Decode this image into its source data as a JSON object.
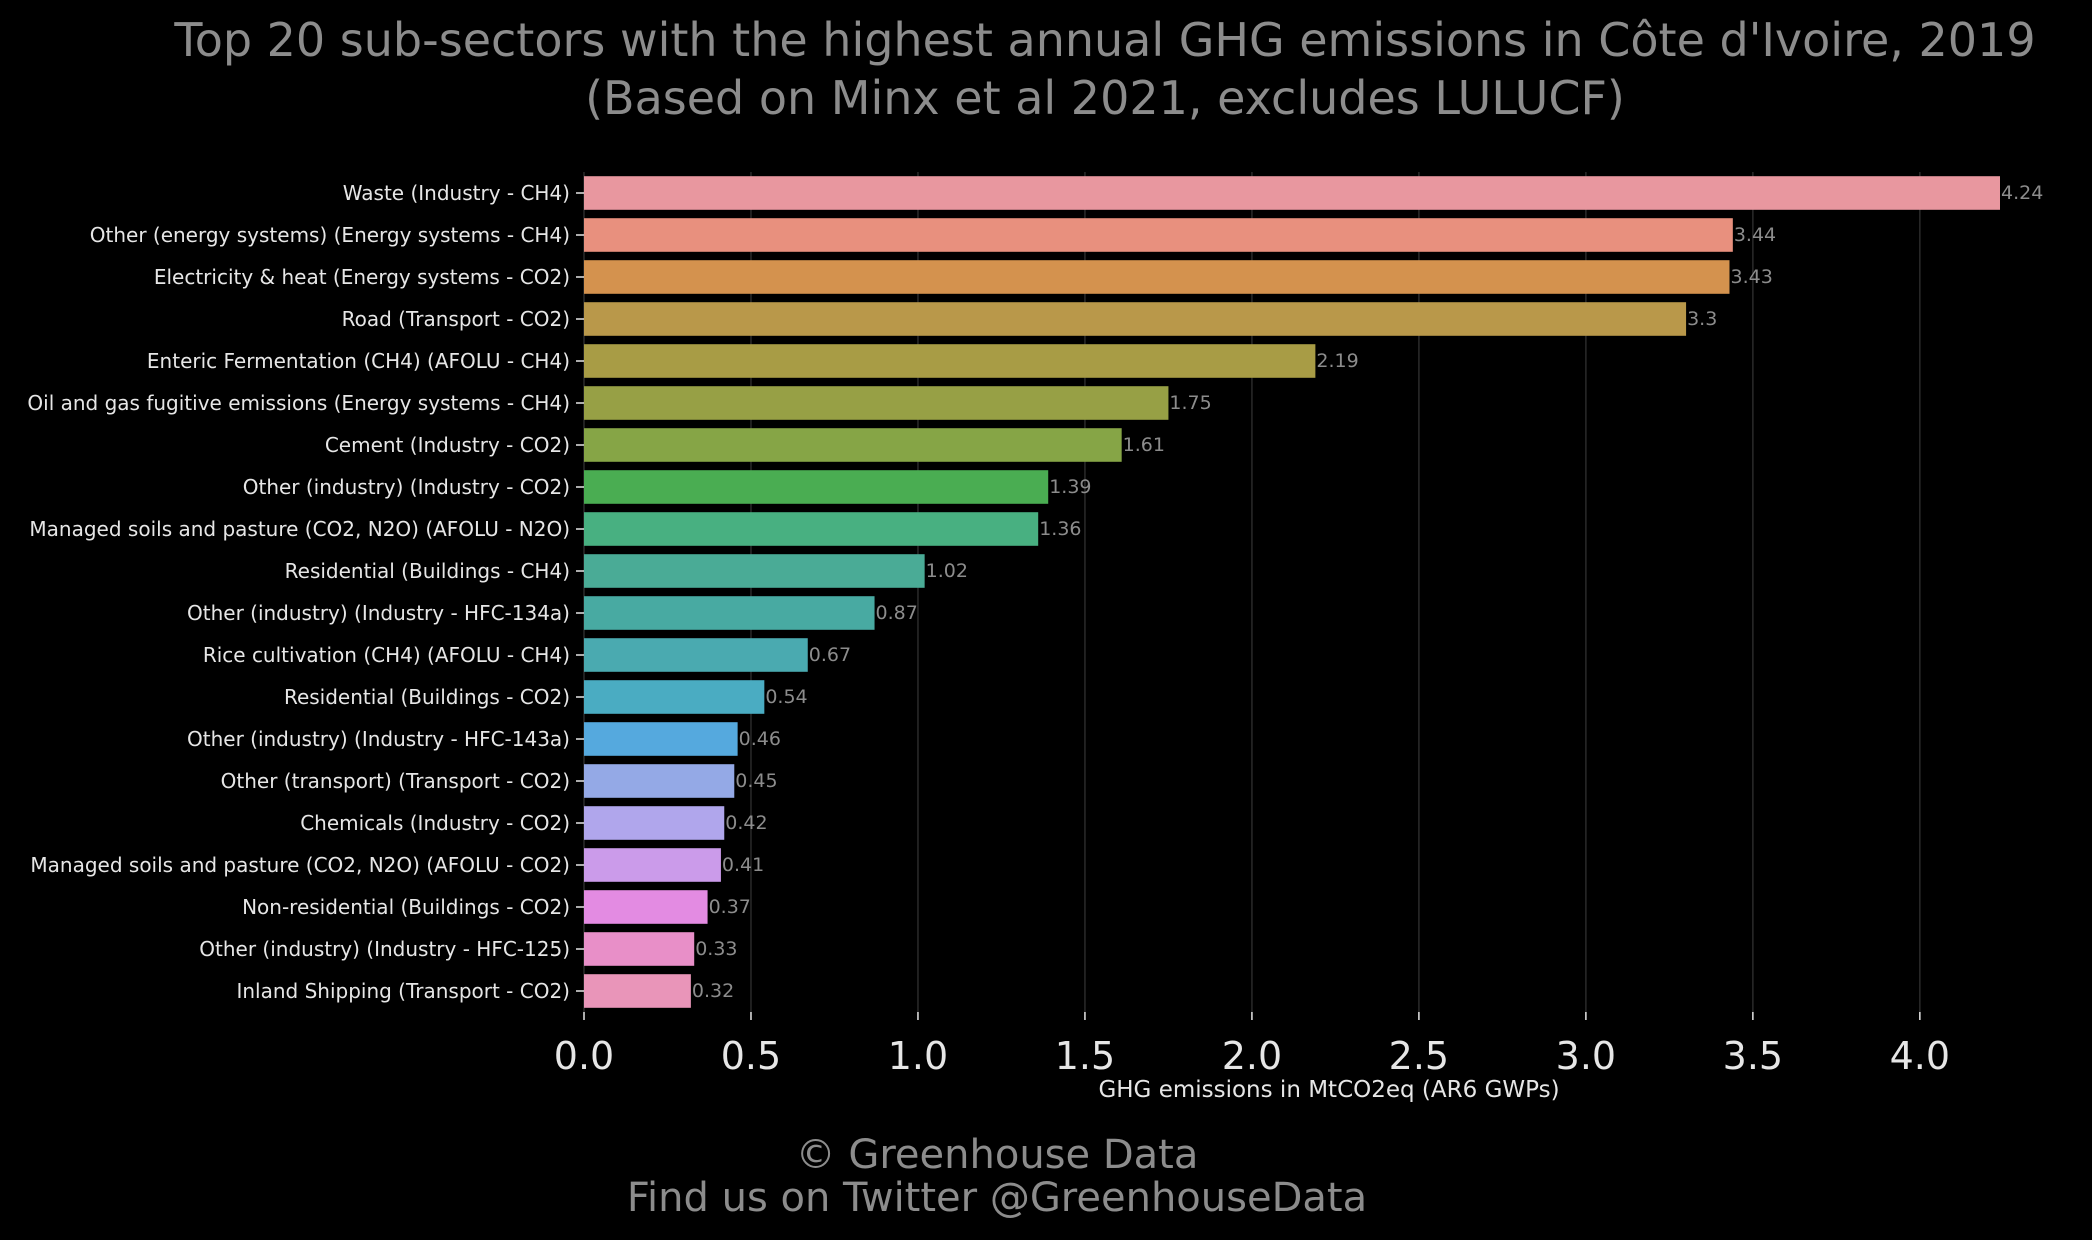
{
  "chart_data": {
    "type": "bar",
    "orientation": "horizontal",
    "title": "Top 20 sub-sectors with the highest annual GHG emissions in Côte d'Ivoire, 2019",
    "subtitle": "(Based on Minx et al 2021, excludes LULUCF)",
    "xlabel": "GHG emissions in MtCO2eq (AR6 GWPs)",
    "ylabel": "",
    "xlim": [
      0,
      4.24
    ],
    "xticks": [
      "0.0",
      "0.5",
      "1.0",
      "1.5",
      "2.0",
      "2.5",
      "3.0",
      "3.5",
      "4.0"
    ],
    "grid": "vertical",
    "categories": [
      "Waste (Industry - CH4)",
      "Other (energy systems) (Energy systems - CH4)",
      "Electricity & heat (Energy systems - CO2)",
      "Road (Transport - CO2)",
      "Enteric Fermentation (CH4) (AFOLU - CH4)",
      "Oil and gas fugitive emissions (Energy systems - CH4)",
      "Cement (Industry - CO2)",
      "Other (industry) (Industry - CO2)",
      "Managed soils and pasture (CO2, N2O) (AFOLU - N2O)",
      "Residential (Buildings - CH4)",
      "Other (industry) (Industry - HFC-134a)",
      "Rice cultivation (CH4) (AFOLU - CH4)",
      "Residential (Buildings - CO2)",
      "Other (industry) (Industry - HFC-143a)",
      "Other (transport) (Transport - CO2)",
      "Chemicals (Industry - CO2)",
      "Managed soils and pasture (CO2, N2O) (AFOLU - CO2)",
      "Non-residential (Buildings - CO2)",
      "Other (industry) (Industry - HFC-125)",
      "Inland Shipping (Transport - CO2)"
    ],
    "values": [
      4.24,
      3.44,
      3.43,
      3.3,
      2.19,
      1.75,
      1.61,
      1.39,
      1.36,
      1.02,
      0.87,
      0.67,
      0.54,
      0.46,
      0.45,
      0.42,
      0.41,
      0.37,
      0.33,
      0.32
    ],
    "value_labels": [
      "4.24",
      "3.44",
      "3.43",
      "3.3",
      "2.19",
      "1.75",
      "1.61",
      "1.39",
      "1.36",
      "1.02",
      "0.87",
      "0.67",
      "0.54",
      "0.46",
      "0.45",
      "0.42",
      "0.41",
      "0.37",
      "0.33",
      "0.32"
    ],
    "colors": [
      "#e8979f",
      "#e8907e",
      "#d4924e",
      "#b9984a",
      "#a89c45",
      "#97a045",
      "#86a546",
      "#4aad52",
      "#48b081",
      "#4aab96",
      "#48aaa2",
      "#4aaab0",
      "#4aacc2",
      "#55a9de",
      "#94a9e6",
      "#b0a6ec",
      "#cb9bea",
      "#e38be2",
      "#e88fc8",
      "#e995b9"
    ]
  },
  "footer": {
    "line1": "© Greenhouse Data",
    "line2": "Find us on Twitter @GreenhouseData"
  },
  "theme": {
    "background": "#000000",
    "muted_text": "#8c8c8c",
    "axis_text": "#e6e6e6"
  }
}
